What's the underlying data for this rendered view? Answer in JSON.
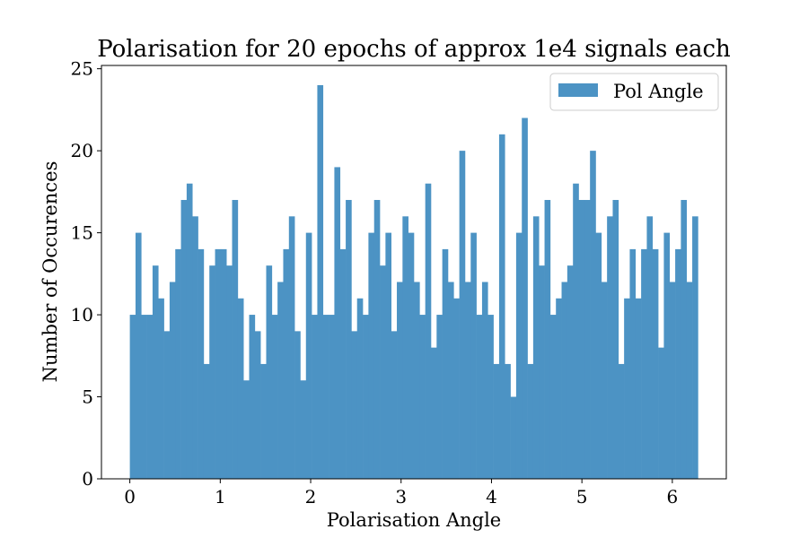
{
  "chart_data": {
    "type": "bar",
    "title": "Polarisation for 20 epochs of approx 1e4 signals each",
    "xlabel": "Polarisation Angle",
    "ylabel": "Number of Occurences",
    "xlim": [
      -0.314,
      6.597
    ],
    "ylim": [
      0,
      25.2
    ],
    "bin_range": [
      0,
      6.2832
    ],
    "xticks": [
      "0",
      "1",
      "2",
      "3",
      "4",
      "5",
      "6"
    ],
    "yticks": [
      "0",
      "5",
      "10",
      "15",
      "20",
      "25"
    ],
    "grid": false,
    "legend_position": "top-right",
    "series": [
      {
        "name": "Pol Angle",
        "color": "#4c93c4",
        "values": [
          10,
          15,
          10,
          10,
          13,
          11,
          9,
          12,
          14,
          17,
          18,
          16,
          14,
          7,
          13,
          14,
          14,
          13,
          17,
          11,
          6,
          10,
          9,
          7,
          13,
          10,
          12,
          14,
          16,
          9,
          6,
          15,
          10,
          24,
          10,
          10,
          19,
          14,
          17,
          9,
          11,
          10,
          15,
          17,
          13,
          15,
          9,
          12,
          16,
          15,
          12,
          10,
          18,
          8,
          10,
          14,
          12,
          11,
          20,
          12,
          15,
          10,
          12,
          10,
          7,
          21,
          7,
          5,
          15,
          22,
          7,
          16,
          13,
          17,
          10,
          11,
          12,
          13,
          18,
          17,
          17,
          20,
          15,
          12,
          16,
          17,
          7,
          11,
          14,
          11,
          14,
          16,
          14,
          8,
          15,
          12,
          14,
          17,
          12,
          16
        ]
      }
    ]
  }
}
